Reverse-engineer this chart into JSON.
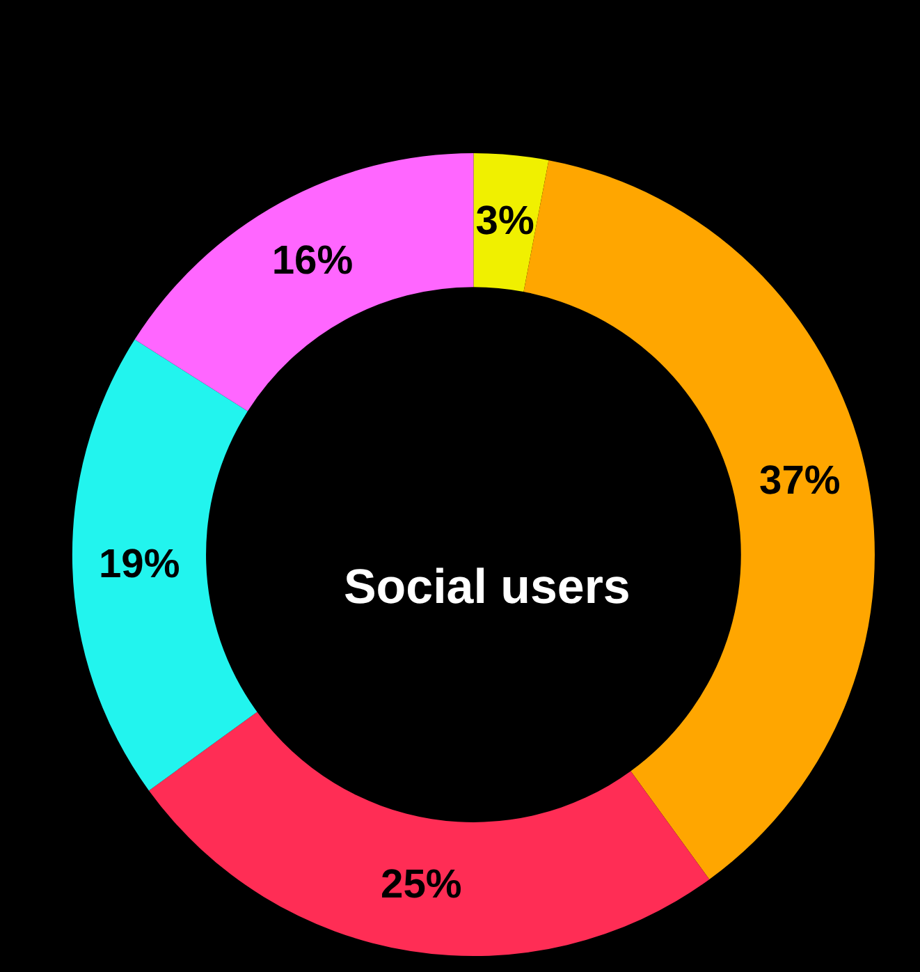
{
  "chart_data": {
    "type": "donut",
    "title": "Social users",
    "categories": [
      null,
      null,
      null,
      null,
      null
    ],
    "values": [
      3,
      37,
      25,
      19,
      16
    ],
    "colors": [
      "#f0f000",
      "#ffa600",
      "#ff2d55",
      "#22f4ee",
      "#ff66ff"
    ],
    "value_labels": [
      "3%",
      "37%",
      "25%",
      "19%",
      "16%"
    ],
    "legend": false
  }
}
